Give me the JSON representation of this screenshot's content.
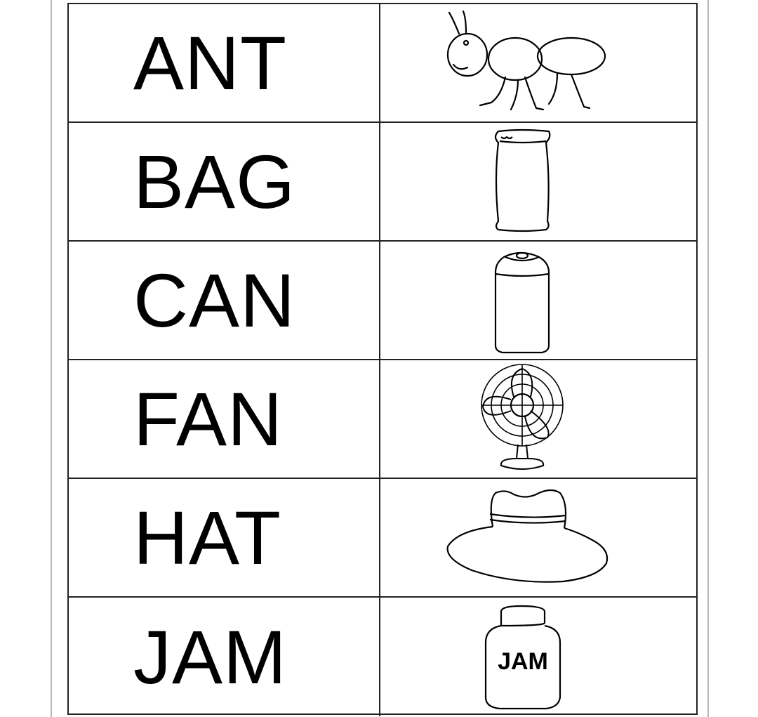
{
  "worksheet": {
    "rows": [
      {
        "word": "ANT",
        "picture": "ant-icon"
      },
      {
        "word": "BAG",
        "picture": "bag-icon"
      },
      {
        "word": "CAN",
        "picture": "can-icon"
      },
      {
        "word": "FAN",
        "picture": "fan-icon"
      },
      {
        "word": "HAT",
        "picture": "hat-icon"
      },
      {
        "word": "JAM",
        "picture": "jam-jar-icon",
        "picture_label": "JAM"
      }
    ]
  }
}
